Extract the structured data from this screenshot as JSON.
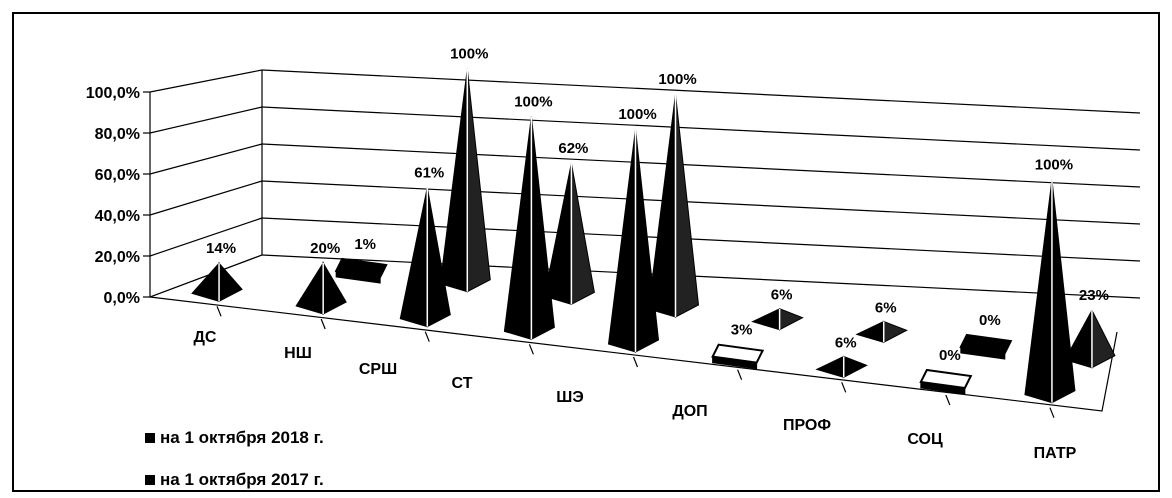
{
  "chart_data": {
    "type": "bar",
    "style": "3d-pyramid",
    "categories": [
      "ДС",
      "НШ",
      "СРШ",
      "СТ",
      "ШЭ",
      "ДОП",
      "ПРОФ",
      "СОЦ",
      "ПАТР"
    ],
    "y_ticks": [
      "100,0%",
      "80,0%",
      "60,0%",
      "40,0%",
      "20,0%",
      "0,0%"
    ],
    "ylim": [
      0,
      100
    ],
    "grid": true,
    "legend_position": "bottom-left",
    "series": [
      {
        "name": "на 1 октября 2018 г.",
        "values": [
          14,
          20,
          61,
          100,
          100,
          3,
          6,
          0,
          100
        ],
        "labels": [
          "14%",
          "20%",
          "61%",
          "100%",
          "100%",
          "3%",
          "6%",
          "0%",
          "100%"
        ]
      },
      {
        "name": "на 1 октября 2017 г.",
        "values": [
          null,
          1,
          100,
          62,
          100,
          6,
          6,
          0,
          23
        ],
        "labels": [
          "",
          "1%",
          "100%",
          "62%",
          "100%",
          "6%",
          "6%",
          "0%",
          "23%"
        ]
      }
    ],
    "colors": {
      "ink": "#000000",
      "paper": "#ffffff"
    }
  }
}
